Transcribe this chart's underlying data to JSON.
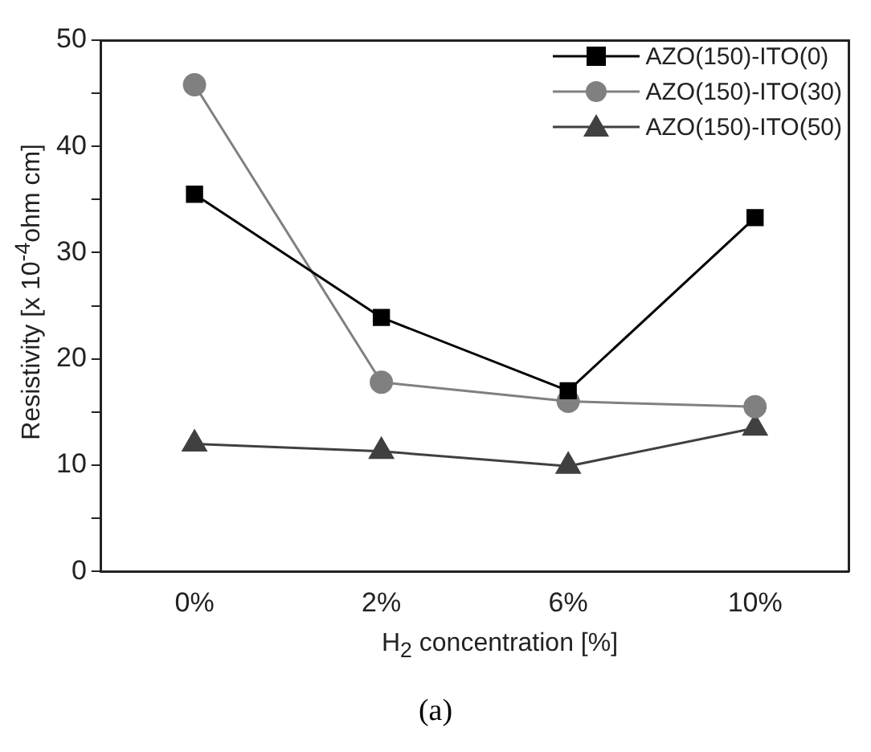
{
  "chart_data": {
    "type": "line",
    "xlabel": "H$_{2}$ concentration [%]",
    "ylabel": "Resistivity [x 10$^{-4}$ohm cm]",
    "categories": [
      "0%",
      "2%",
      "6%",
      "10%"
    ],
    "series": [
      {
        "name": "AZO(150)-ITO(0)",
        "color": "#000000",
        "marker": "square",
        "values": [
          35.5,
          23.9,
          17.0,
          33.3
        ]
      },
      {
        "name": "AZO(150)-ITO(30)",
        "color": "#808080",
        "marker": "circle",
        "values": [
          45.8,
          17.8,
          16.0,
          15.5
        ]
      },
      {
        "name": "AZO(150)-ITO(50)",
        "color": "#404040",
        "marker": "triangle",
        "values": [
          12.0,
          11.3,
          9.9,
          13.5
        ]
      }
    ],
    "ylim": [
      0,
      50
    ],
    "yticks": [
      0,
      {
        "value": 5,
        "label": null
      },
      10,
      {
        "value": 15,
        "label": null
      },
      20,
      {
        "value": 25,
        "label": null
      },
      30,
      {
        "value": 35,
        "label": null
      },
      40,
      {
        "value": 45,
        "label": null
      },
      50
    ],
    "grid": false,
    "legend": "top right",
    "line_style": "solid",
    "annotations": [
      "(a)"
    ]
  }
}
